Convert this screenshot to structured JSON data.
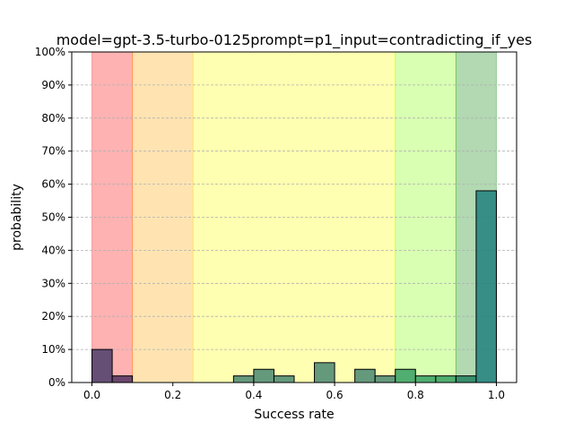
{
  "chart_data": {
    "type": "bar",
    "title": "model=gpt-3.5-turbo-0125prompt=p1_input=contradicting_if_yes",
    "xlabel": "Success rate",
    "ylabel": "probability",
    "xlim": [
      -0.05,
      1.05
    ],
    "ylim": [
      0,
      1.0
    ],
    "x_ticks": [
      0.0,
      0.2,
      0.4,
      0.6,
      0.8,
      1.0
    ],
    "x_tick_labels": [
      "0.0",
      "0.2",
      "0.4",
      "0.6",
      "0.8",
      "1.0"
    ],
    "y_ticks": [
      0,
      0.1,
      0.2,
      0.3,
      0.4,
      0.5,
      0.6,
      0.7,
      0.8,
      0.9,
      1.0
    ],
    "y_tick_labels": [
      "0%",
      "10%",
      "20%",
      "30%",
      "40%",
      "50%",
      "60%",
      "70%",
      "80%",
      "90%",
      "100%"
    ],
    "grid": "horizontal dashed",
    "bands": [
      {
        "from": 0.0,
        "to": 0.1,
        "color": "#ff0000",
        "alpha": 0.3
      },
      {
        "from": 0.1,
        "to": 0.25,
        "color": "#ffa500",
        "alpha": 0.3
      },
      {
        "from": 0.25,
        "to": 0.75,
        "color": "#ffff00",
        "alpha": 0.3
      },
      {
        "from": 0.75,
        "to": 0.9,
        "color": "#7fff00",
        "alpha": 0.3
      },
      {
        "from": 0.9,
        "to": 1.0,
        "color": "#008000",
        "alpha": 0.3
      }
    ],
    "bin_width": 0.05,
    "bars": [
      {
        "x": 0.0,
        "value": 0.1,
        "color": "#3f3665"
      },
      {
        "x": 0.05,
        "value": 0.02,
        "color": "#452a5a"
      },
      {
        "x": 0.35,
        "value": 0.02,
        "color": "#3f7f6e"
      },
      {
        "x": 0.4,
        "value": 0.04,
        "color": "#3f7f6e"
      },
      {
        "x": 0.45,
        "value": 0.02,
        "color": "#3f7f6e"
      },
      {
        "x": 0.55,
        "value": 0.06,
        "color": "#3f7f6e"
      },
      {
        "x": 0.65,
        "value": 0.04,
        "color": "#3f7f6e"
      },
      {
        "x": 0.7,
        "value": 0.02,
        "color": "#3f7f6e"
      },
      {
        "x": 0.75,
        "value": 0.04,
        "color": "#2e9a5f"
      },
      {
        "x": 0.8,
        "value": 0.02,
        "color": "#2e9a5f"
      },
      {
        "x": 0.85,
        "value": 0.02,
        "color": "#2e9a5f"
      },
      {
        "x": 0.9,
        "value": 0.02,
        "color": "#1a7a5a"
      },
      {
        "x": 0.95,
        "value": 0.58,
        "color": "#167a7a"
      }
    ]
  }
}
